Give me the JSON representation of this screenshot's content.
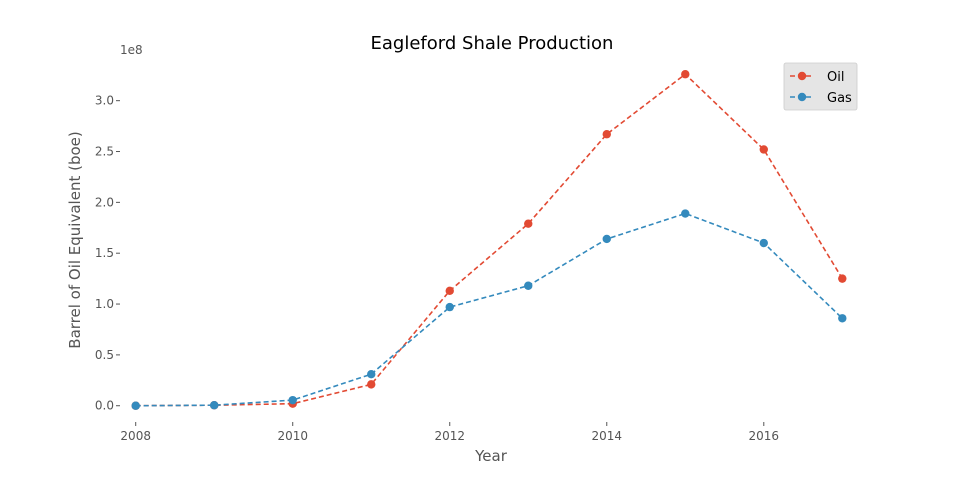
{
  "chart_data": {
    "type": "line",
    "title": "Eagleford Shale Production",
    "xlabel": "Year",
    "ylabel": "Barrel of Oil Equivalent (boe)",
    "y_offset_label": "1e8",
    "x": [
      2008,
      2009,
      2010,
      2011,
      2012,
      2013,
      2014,
      2015,
      2016,
      2017
    ],
    "x_ticks": [
      2008,
      2010,
      2012,
      2014,
      2016
    ],
    "x_tick_labels": [
      "2008",
      "2010",
      "2012",
      "2014",
      "2016"
    ],
    "y_ticks": [
      0.0,
      0.5,
      1.0,
      1.5,
      2.0,
      2.5,
      3.0
    ],
    "y_tick_labels": [
      "0.0",
      "0.5",
      "1.0",
      "1.5",
      "2.0",
      "2.5",
      "3.0"
    ],
    "xlim": [
      2007.8,
      2017.2
    ],
    "ylim": [
      -0.16,
      3.4
    ],
    "y_scale_factor": 100000000,
    "grid": false,
    "legend_position": "top-right",
    "series": [
      {
        "name": "Oil",
        "color": "#E24A33",
        "style": "dashed-with-markers",
        "values": [
          0.0,
          0.005,
          0.02,
          0.21,
          1.13,
          1.79,
          2.67,
          3.26,
          2.52,
          1.25
        ]
      },
      {
        "name": "Gas",
        "color": "#348ABD",
        "style": "dashed-with-markers",
        "values": [
          0.0,
          0.005,
          0.055,
          0.31,
          0.97,
          1.18,
          1.64,
          1.89,
          1.6,
          0.86
        ]
      }
    ]
  }
}
